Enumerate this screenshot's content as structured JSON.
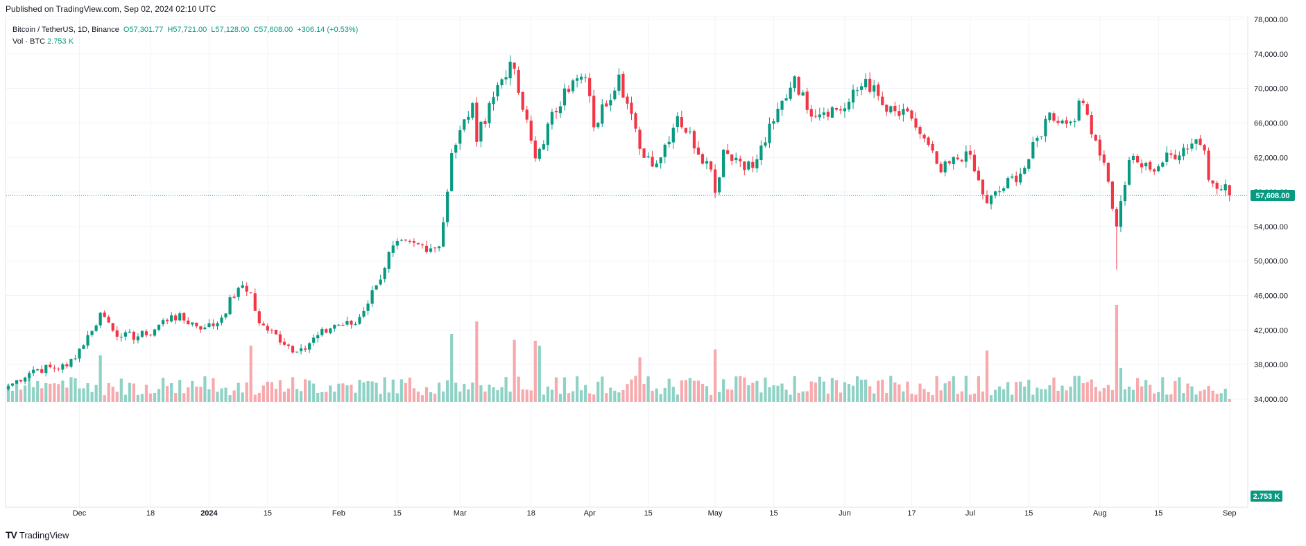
{
  "header": {
    "published": "Published on TradingView.com, Sep 02, 2024 02:10 UTC"
  },
  "legend": {
    "symbol": "Bitcoin / TetherUS, 1D, Binance",
    "open": "O57,301.77",
    "high": "H57,721.00",
    "low": "L57,128.00",
    "close": "C57,608.00",
    "change": "+306.14 (+0.53%)",
    "volume_label": "Vol · BTC",
    "volume_value": "2.753 K"
  },
  "footer": {
    "brand": "TradingView",
    "logo": "TV"
  },
  "colors": {
    "up": "#089981",
    "down": "#f23645",
    "vol_up": "#8fd2c5",
    "vol_down": "#f7a9ad",
    "grid": "#f0f3fa",
    "text": "#131722"
  },
  "chart_data": {
    "type": "candlestick",
    "title": "Bitcoin / TetherUS, 1D, Binance",
    "ylim": [
      30000,
      78000
    ],
    "y_ticks": [
      "78,000.00",
      "74,000.00",
      "70,000.00",
      "66,000.00",
      "62,000.00",
      "58,000.00",
      "54,000.00",
      "50,000.00",
      "46,000.00",
      "42,000.00",
      "38,000.00",
      "34,000.00"
    ],
    "x_ticks": [
      {
        "label": "Dec",
        "date": "2023-12-01"
      },
      {
        "label": "18",
        "date": "2023-12-18"
      },
      {
        "label": "2024",
        "date": "2024-01-01",
        "bold": true
      },
      {
        "label": "15",
        "date": "2024-01-15"
      },
      {
        "label": "Feb",
        "date": "2024-02-01"
      },
      {
        "label": "15",
        "date": "2024-02-15"
      },
      {
        "label": "Mar",
        "date": "2024-03-01"
      },
      {
        "label": "18",
        "date": "2024-03-18"
      },
      {
        "label": "Apr",
        "date": "2024-04-01"
      },
      {
        "label": "15",
        "date": "2024-04-15"
      },
      {
        "label": "May",
        "date": "2024-05-01"
      },
      {
        "label": "15",
        "date": "2024-05-15"
      },
      {
        "label": "Jun",
        "date": "2024-06-01"
      },
      {
        "label": "17",
        "date": "2024-06-17"
      },
      {
        "label": "Jul",
        "date": "2024-07-01"
      },
      {
        "label": "15",
        "date": "2024-07-15"
      },
      {
        "label": "Aug",
        "date": "2024-08-01"
      },
      {
        "label": "15",
        "date": "2024-08-15"
      },
      {
        "label": "Sep",
        "date": "2024-09-01"
      }
    ],
    "start_date": "2023-11-14",
    "last_price": 57608,
    "last_price_label": "57,608.00",
    "volume_last_label": "2.753 K",
    "close_path": [
      [
        "2023-11-14",
        35500
      ],
      [
        "2023-11-20",
        37400
      ],
      [
        "2023-11-28",
        37800
      ],
      [
        "2023-12-04",
        41900
      ],
      [
        "2023-12-06",
        44000
      ],
      [
        "2023-12-11",
        41200
      ],
      [
        "2023-12-17",
        41400
      ],
      [
        "2023-12-23",
        43700
      ],
      [
        "2023-12-31",
        42300
      ],
      [
        "2024-01-03",
        42800
      ],
      [
        "2024-01-08",
        46900
      ],
      [
        "2024-01-11",
        46300
      ],
      [
        "2024-01-13",
        42800
      ],
      [
        "2024-01-22",
        39500
      ],
      [
        "2024-01-23",
        39900
      ],
      [
        "2024-01-31",
        42600
      ],
      [
        "2024-02-05",
        42700
      ],
      [
        "2024-02-10",
        47200
      ],
      [
        "2024-02-14",
        51800
      ],
      [
        "2024-02-25",
        51700
      ],
      [
        "2024-02-26",
        54500
      ],
      [
        "2024-02-28",
        62500
      ],
      [
        "2024-03-04",
        68300
      ],
      [
        "2024-03-05",
        63800
      ],
      [
        "2024-03-08",
        68300
      ],
      [
        "2024-03-13",
        73100
      ],
      [
        "2024-03-15",
        69500
      ],
      [
        "2024-03-19",
        61900
      ],
      [
        "2024-03-26",
        70000
      ],
      [
        "2024-03-31",
        71300
      ],
      [
        "2024-04-02",
        65500
      ],
      [
        "2024-04-08",
        71600
      ],
      [
        "2024-04-13",
        63000
      ],
      [
        "2024-04-17",
        61300
      ],
      [
        "2024-04-22",
        66800
      ],
      [
        "2024-04-30",
        60600
      ],
      [
        "2024-05-01",
        57900
      ],
      [
        "2024-05-03",
        62900
      ],
      [
        "2024-05-10",
        60800
      ],
      [
        "2024-05-15",
        66200
      ],
      [
        "2024-05-20",
        71400
      ],
      [
        "2024-05-23",
        67500
      ],
      [
        "2024-06-01",
        67700
      ],
      [
        "2024-06-06",
        71100
      ],
      [
        "2024-06-11",
        67300
      ],
      [
        "2024-06-17",
        66500
      ],
      [
        "2024-06-24",
        60300
      ],
      [
        "2024-06-30",
        62700
      ],
      [
        "2024-07-05",
        56700
      ],
      [
        "2024-07-14",
        60800
      ],
      [
        "2024-07-20",
        67200
      ],
      [
        "2024-07-24",
        65900
      ],
      [
        "2024-07-28",
        68300
      ],
      [
        "2024-08-02",
        61400
      ],
      [
        "2024-08-05",
        54000
      ],
      [
        "2024-08-08",
        61700
      ],
      [
        "2024-08-13",
        60600
      ],
      [
        "2024-08-24",
        64100
      ],
      [
        "2024-08-26",
        62800
      ],
      [
        "2024-08-27",
        59400
      ],
      [
        "2024-08-31",
        58900
      ],
      [
        "2024-09-01",
        57608
      ]
    ]
  }
}
